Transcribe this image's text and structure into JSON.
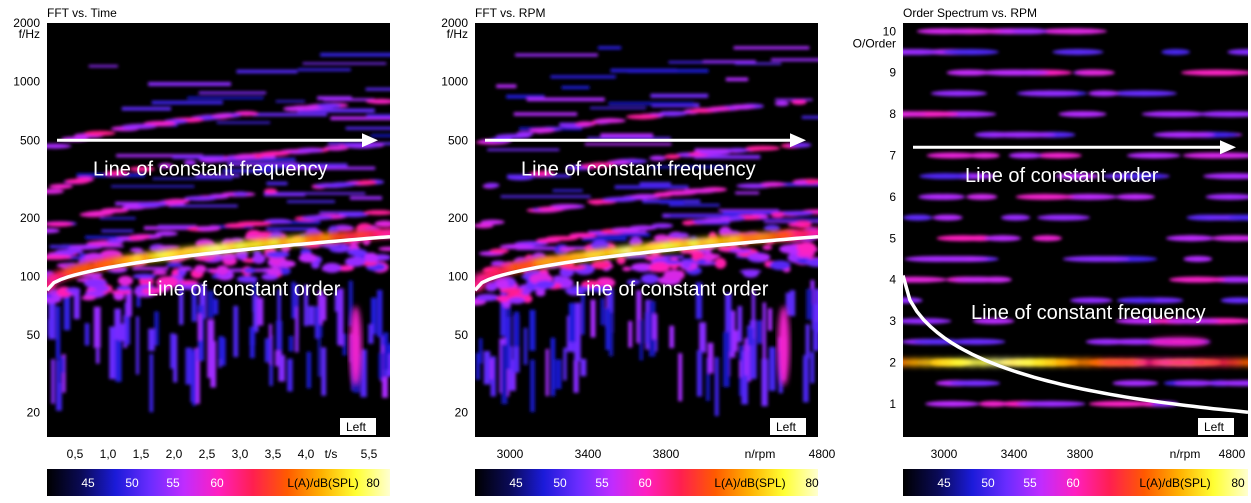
{
  "colorbar": {
    "label": "L(A)/dB(SPL)",
    "ticks": [
      "45",
      "50",
      "55",
      "60",
      "80"
    ],
    "stops": [
      "#000000",
      "#0a0a55",
      "#1b1bd9",
      "#6a2cff",
      "#c02cff",
      "#ff1fbf",
      "#ff1f50",
      "#ff5a00",
      "#ffb000",
      "#ffff33",
      "#ffffd0"
    ]
  },
  "chart_data": [
    {
      "type": "heatmap",
      "title": "FFT vs. Time",
      "xlabel": "t/s",
      "ylabel": "f/Hz",
      "y_scale": "log",
      "ylim": [
        15,
        2000
      ],
      "xlim": [
        0.2,
        5.7
      ],
      "x_ticks": [
        "0,5",
        "1,0",
        "1,5",
        "2,0",
        "2,5",
        "3,0",
        "3,5",
        "4,0",
        "5,5"
      ],
      "y_ticks": [
        "2000",
        "1000",
        "500",
        "200",
        "100",
        "50",
        "20"
      ],
      "channel_badge": "Left",
      "annotations": [
        {
          "text": "Line of constant frequency",
          "type": "arrow",
          "y": 500
        },
        {
          "text": "Line of constant order",
          "type": "curve",
          "y_start": 85,
          "y_end": 160
        }
      ]
    },
    {
      "type": "heatmap",
      "title": "FFT vs. RPM",
      "xlabel": "n/rpm",
      "ylabel": "f/Hz",
      "y_scale": "log",
      "ylim": [
        15,
        2000
      ],
      "xlim": [
        2800,
        4800
      ],
      "x_ticks": [
        "3000",
        "3400",
        "3800",
        "4800"
      ],
      "y_ticks": [
        "2000",
        "1000",
        "500",
        "200",
        "100",
        "50",
        "20"
      ],
      "channel_badge": "Left",
      "annotations": [
        {
          "text": "Line of constant frequency",
          "type": "arrow",
          "y": 500
        },
        {
          "text": "Line of constant order",
          "type": "curve",
          "y_start": 85,
          "y_end": 160
        }
      ]
    },
    {
      "type": "heatmap",
      "title": "Order Spectrum vs. RPM",
      "xlabel": "n/rpm",
      "ylabel": "O/Order",
      "y_scale": "linear",
      "ylim": [
        0.2,
        10.2
      ],
      "xlim": [
        2800,
        4800
      ],
      "x_ticks": [
        "3000",
        "3400",
        "3800",
        "4800"
      ],
      "y_ticks": [
        "10",
        "9",
        "8",
        "7",
        "6",
        "5",
        "4",
        "3",
        "2",
        "1"
      ],
      "channel_badge": "Left",
      "annotations": [
        {
          "text": "Line of constant order",
          "type": "arrow",
          "y": 7.2
        },
        {
          "text": "Line of constant frequency",
          "type": "curve",
          "y_start": 4.1,
          "y_end": 0.8
        }
      ]
    }
  ]
}
